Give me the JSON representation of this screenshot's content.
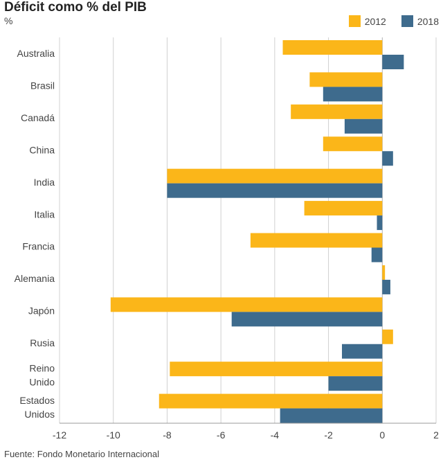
{
  "header": {
    "title": "Déficit como % del PIB",
    "unit": "%"
  },
  "legend": [
    {
      "label": "2012",
      "color": "#fbb619"
    },
    {
      "label": "2018",
      "color": "#3e6b8d"
    }
  ],
  "footer": {
    "source": "Fuente: Fondo Monetario Internacional"
  },
  "chart_data": {
    "type": "bar",
    "orientation": "horizontal",
    "title": "Déficit como % del PIB",
    "ylabel": "%",
    "categories": [
      [
        "Australia"
      ],
      [
        "Brasil"
      ],
      [
        "Canadá"
      ],
      [
        "China"
      ],
      [
        "India"
      ],
      [
        "Italia"
      ],
      [
        "Francia"
      ],
      [
        "Alemania"
      ],
      [
        "Japón"
      ],
      [
        "Rusia"
      ],
      [
        "Reino",
        "Unido"
      ],
      [
        "Estados",
        "Unidos"
      ]
    ],
    "series": [
      {
        "name": "2012",
        "color": "#fbb619",
        "values": [
          -3.7,
          -2.7,
          -3.4,
          -2.2,
          -8.0,
          -2.9,
          -4.9,
          0.1,
          -10.1,
          0.4,
          -7.9,
          -8.3
        ]
      },
      {
        "name": "2018",
        "color": "#3e6b8d",
        "values": [
          0.8,
          -2.2,
          -1.4,
          0.4,
          -8.0,
          -0.2,
          -0.4,
          0.3,
          -5.6,
          -1.5,
          -2.0,
          -3.8
        ]
      }
    ],
    "xlim": [
      -12,
      2
    ],
    "xticks": [
      -12,
      -10,
      -8,
      -6,
      -4,
      -2,
      0,
      2
    ],
    "grid": true,
    "legend_position": "top-right"
  }
}
